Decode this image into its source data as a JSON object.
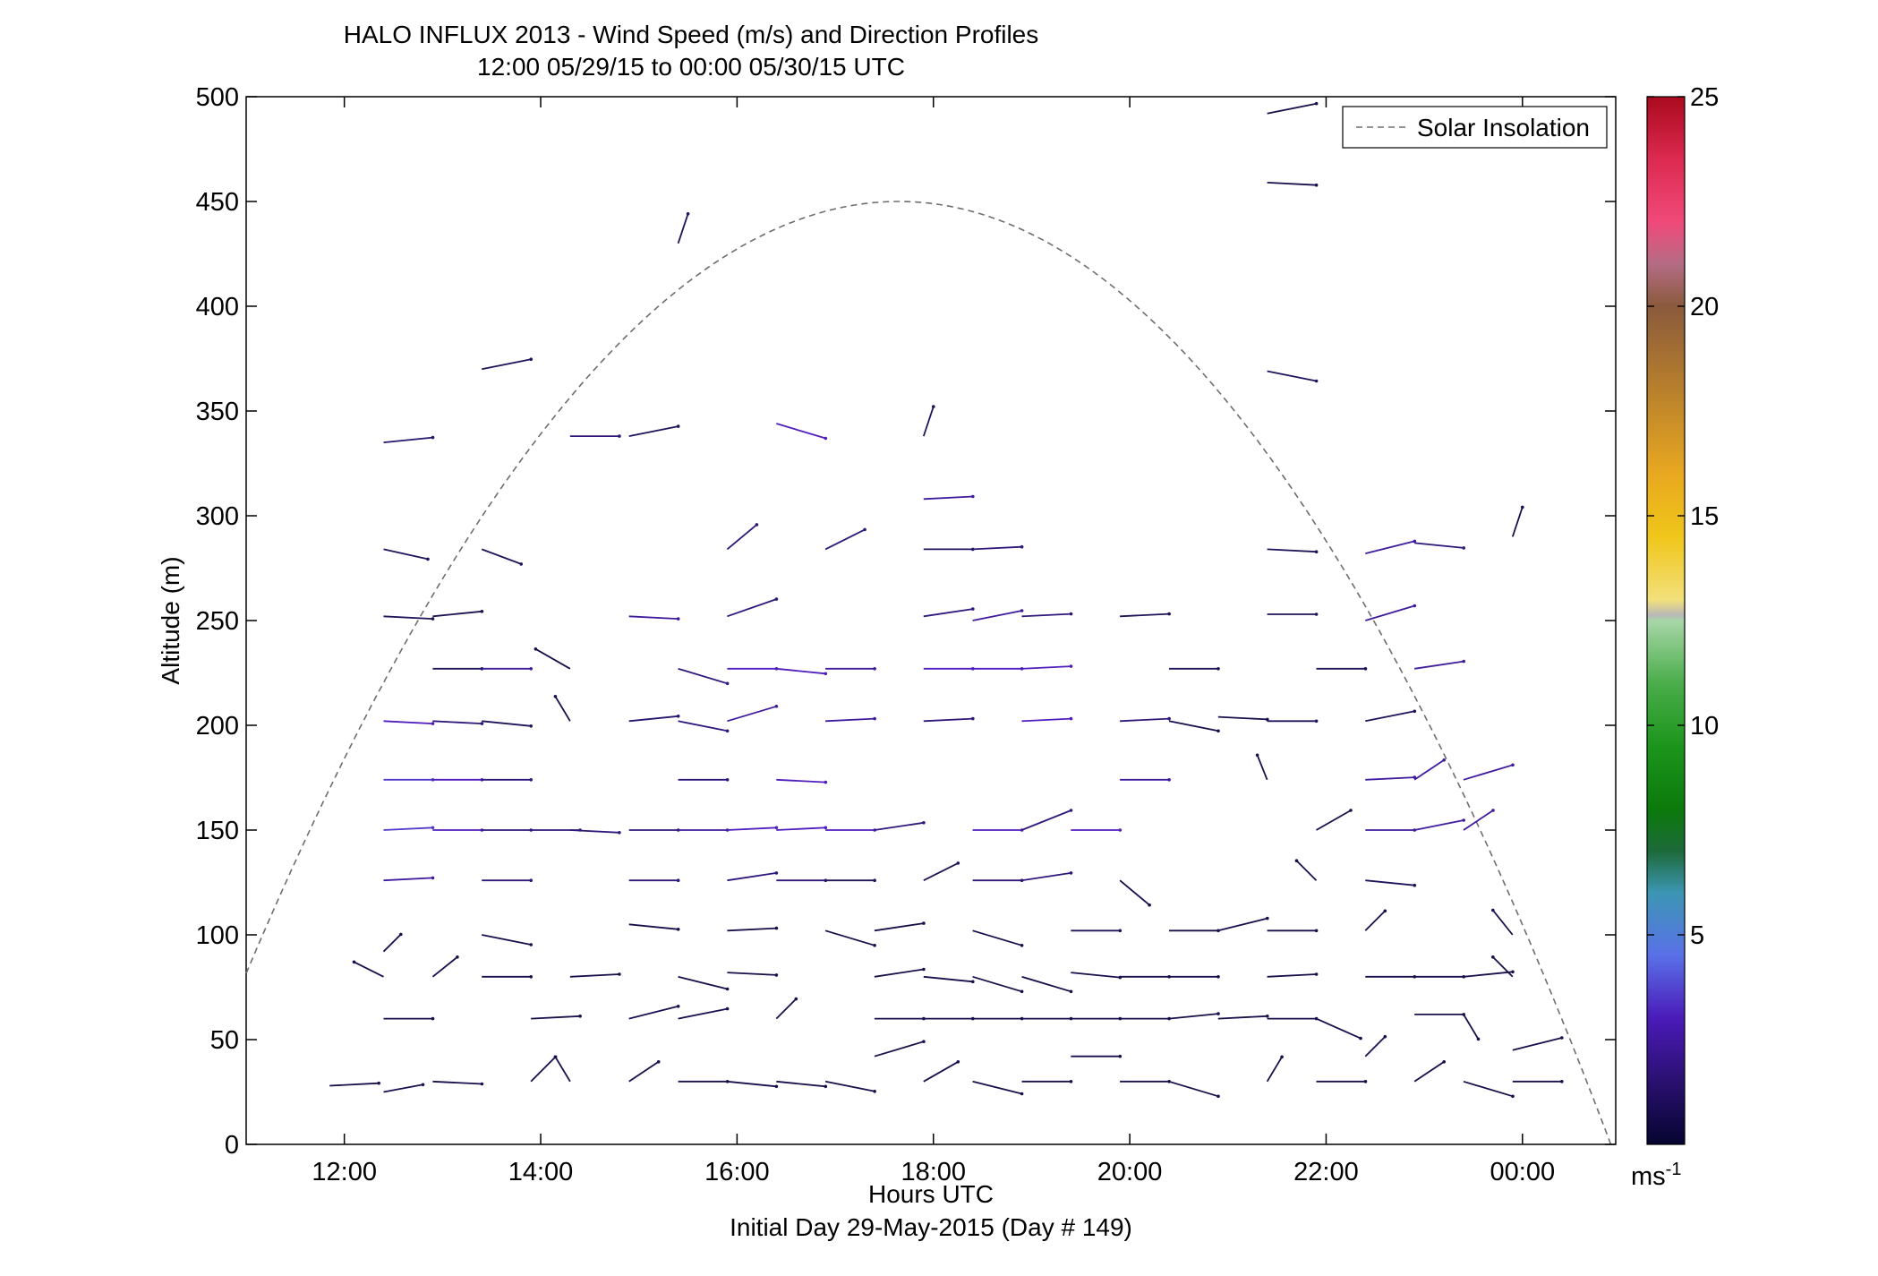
{
  "chart_data": {
    "type": "quiver",
    "title": "HALO INFLUX 2013 - Wind Speed (m/s) and Direction Profiles",
    "subtitle": "12:00 05/29/15 to 00:00 05/30/15  UTC",
    "xlabel": "Hours UTC",
    "xlabel2": "Initial Day 29-May-2015 (Day # 149)",
    "ylabel": "Altitude (m)",
    "xlim": [
      11.0,
      24.95
    ],
    "ylim": [
      0,
      500
    ],
    "x_ticks": [
      {
        "value": 12,
        "label": "12:00"
      },
      {
        "value": 14,
        "label": "14:00"
      },
      {
        "value": 16,
        "label": "16:00"
      },
      {
        "value": 18,
        "label": "18:00"
      },
      {
        "value": 20,
        "label": "20:00"
      },
      {
        "value": 22,
        "label": "22:00"
      },
      {
        "value": 24,
        "label": "00:00"
      }
    ],
    "y_ticks": [
      0,
      50,
      100,
      150,
      200,
      250,
      300,
      350,
      400,
      450,
      500
    ],
    "legend": {
      "entries": [
        "Solar Insolation"
      ],
      "placement": "top-right",
      "line_style": "dashed",
      "line_color": "#6e6e6e"
    },
    "colorbar": {
      "min": 0,
      "max": 25,
      "ticks": [
        5,
        10,
        15,
        20,
        25
      ],
      "unit_base": "ms",
      "unit_exp": "-1"
    },
    "grid": false,
    "insolation_curve": {
      "rise": 10.3,
      "set": 24.9,
      "peak_time": 17.65,
      "peak_altitude": 450
    },
    "wind_vectors": [
      {
        "t": 11.85,
        "z": 28,
        "u": 1.0,
        "v": 0.05,
        "s": 1.0
      },
      {
        "t": 12.4,
        "z": 25,
        "u": 0.8,
        "v": 0.15,
        "s": 1.2
      },
      {
        "t": 12.4,
        "z": 60,
        "u": 1.0,
        "v": 0.0,
        "s": 1.0
      },
      {
        "t": 12.4,
        "z": 80,
        "u": -0.6,
        "v": 0.3,
        "s": 1.0
      },
      {
        "t": 12.4,
        "z": 92,
        "u": 0.35,
        "v": 0.35,
        "s": 1.0
      },
      {
        "t": 12.4,
        "z": 126,
        "u": 1.0,
        "v": 0.05,
        "s": 2.5
      },
      {
        "t": 12.4,
        "z": 150,
        "u": 1.0,
        "v": 0.05,
        "s": 3.5
      },
      {
        "t": 12.4,
        "z": 174,
        "u": 1.0,
        "v": 0.0,
        "s": 3.5
      },
      {
        "t": 12.4,
        "z": 202,
        "u": 1.0,
        "v": -0.05,
        "s": 3.0
      },
      {
        "t": 12.4,
        "z": 252,
        "u": 1.0,
        "v": -0.05,
        "s": 1.5
      },
      {
        "t": 12.4,
        "z": 284,
        "u": 0.9,
        "v": -0.2,
        "s": 1.5
      },
      {
        "t": 12.4,
        "z": 335,
        "u": 1.0,
        "v": 0.1,
        "s": 1.8
      },
      {
        "t": 12.9,
        "z": 30,
        "u": 1.0,
        "v": -0.05,
        "s": 1.0
      },
      {
        "t": 12.9,
        "z": 80,
        "u": 0.5,
        "v": 0.4,
        "s": 1.0
      },
      {
        "t": 12.9,
        "z": 150,
        "u": 1.0,
        "v": 0.0,
        "s": 3.0
      },
      {
        "t": 12.9,
        "z": 174,
        "u": 1.0,
        "v": 0.0,
        "s": 3.0
      },
      {
        "t": 12.9,
        "z": 202,
        "u": 1.0,
        "v": -0.05,
        "s": 2.0
      },
      {
        "t": 12.9,
        "z": 227,
        "u": 1.0,
        "v": 0.0,
        "s": 1.5
      },
      {
        "t": 12.9,
        "z": 252,
        "u": 1.0,
        "v": 0.1,
        "s": 1.2
      },
      {
        "t": 13.4,
        "z": 80,
        "u": 1.0,
        "v": 0.0,
        "s": 1.0
      },
      {
        "t": 13.4,
        "z": 100,
        "u": 1.0,
        "v": -0.2,
        "s": 1.0
      },
      {
        "t": 13.4,
        "z": 126,
        "u": 1.0,
        "v": 0.0,
        "s": 2.0
      },
      {
        "t": 13.4,
        "z": 150,
        "u": 1.0,
        "v": 0.0,
        "s": 2.0
      },
      {
        "t": 13.4,
        "z": 174,
        "u": 1.0,
        "v": 0.0,
        "s": 2.0
      },
      {
        "t": 13.4,
        "z": 202,
        "u": 1.0,
        "v": -0.1,
        "s": 1.5
      },
      {
        "t": 13.4,
        "z": 227,
        "u": 1.0,
        "v": 0.0,
        "s": 2.5
      },
      {
        "t": 13.4,
        "z": 284,
        "u": 0.8,
        "v": -0.3,
        "s": 1.5
      },
      {
        "t": 13.4,
        "z": 370,
        "u": 1.0,
        "v": 0.2,
        "s": 1.5
      },
      {
        "t": 13.9,
        "z": 30,
        "u": 0.5,
        "v": 0.5,
        "s": 1.0
      },
      {
        "t": 13.9,
        "z": 60,
        "u": 1.0,
        "v": 0.05,
        "s": 1.0
      },
      {
        "t": 13.9,
        "z": 150,
        "u": 1.0,
        "v": 0.0,
        "s": 2.0
      },
      {
        "t": 14.3,
        "z": 30,
        "u": -0.3,
        "v": 0.5,
        "s": 1.0
      },
      {
        "t": 14.3,
        "z": 80,
        "u": 1.0,
        "v": 0.05,
        "s": 1.0
      },
      {
        "t": 14.3,
        "z": 150,
        "u": 1.0,
        "v": -0.05,
        "s": 2.0
      },
      {
        "t": 14.3,
        "z": 202,
        "u": -0.3,
        "v": 0.5,
        "s": 1.0
      },
      {
        "t": 14.3,
        "z": 227,
        "u": -0.7,
        "v": 0.4,
        "s": 1.0
      },
      {
        "t": 14.3,
        "z": 338,
        "u": 1.0,
        "v": 0.0,
        "s": 2.0
      },
      {
        "t": 14.9,
        "z": 30,
        "u": 0.6,
        "v": 0.4,
        "s": 1.0
      },
      {
        "t": 14.9,
        "z": 60,
        "u": 1.0,
        "v": 0.25,
        "s": 1.2
      },
      {
        "t": 14.9,
        "z": 105,
        "u": 1.0,
        "v": -0.1,
        "s": 1.0
      },
      {
        "t": 14.9,
        "z": 126,
        "u": 1.0,
        "v": 0.0,
        "s": 2.0
      },
      {
        "t": 14.9,
        "z": 150,
        "u": 1.0,
        "v": 0.0,
        "s": 2.0
      },
      {
        "t": 14.9,
        "z": 202,
        "u": 1.0,
        "v": 0.1,
        "s": 1.8
      },
      {
        "t": 14.9,
        "z": 252,
        "u": 1.0,
        "v": -0.05,
        "s": 2.5
      },
      {
        "t": 14.9,
        "z": 338,
        "u": 1.0,
        "v": 0.2,
        "s": 1.5
      },
      {
        "t": 15.4,
        "z": 30,
        "u": 1.0,
        "v": 0.0,
        "s": 1.0
      },
      {
        "t": 15.4,
        "z": 60,
        "u": 1.0,
        "v": 0.2,
        "s": 1.2
      },
      {
        "t": 15.4,
        "z": 80,
        "u": 1.0,
        "v": -0.25,
        "s": 1.0
      },
      {
        "t": 15.4,
        "z": 150,
        "u": 1.0,
        "v": 0.0,
        "s": 2.5
      },
      {
        "t": 15.4,
        "z": 174,
        "u": 1.0,
        "v": 0.0,
        "s": 2.0
      },
      {
        "t": 15.4,
        "z": 202,
        "u": 1.0,
        "v": -0.2,
        "s": 2.0
      },
      {
        "t": 15.4,
        "z": 227,
        "u": 1.0,
        "v": -0.3,
        "s": 2.0
      },
      {
        "t": 15.4,
        "z": 430,
        "u": 0.2,
        "v": 0.6,
        "s": 1.5
      },
      {
        "t": 15.9,
        "z": 30,
        "u": 1.0,
        "v": -0.1,
        "s": 1.0
      },
      {
        "t": 15.9,
        "z": 82,
        "u": 1.0,
        "v": -0.05,
        "s": 1.0
      },
      {
        "t": 15.9,
        "z": 102,
        "u": 1.0,
        "v": 0.05,
        "s": 1.0
      },
      {
        "t": 15.9,
        "z": 126,
        "u": 1.0,
        "v": 0.15,
        "s": 2.0
      },
      {
        "t": 15.9,
        "z": 150,
        "u": 1.0,
        "v": 0.05,
        "s": 3.0
      },
      {
        "t": 15.9,
        "z": 202,
        "u": 1.0,
        "v": 0.3,
        "s": 2.5
      },
      {
        "t": 15.9,
        "z": 227,
        "u": 1.0,
        "v": 0.0,
        "s": 3.0
      },
      {
        "t": 15.9,
        "z": 252,
        "u": 1.0,
        "v": 0.35,
        "s": 2.0
      },
      {
        "t": 15.9,
        "z": 284,
        "u": 0.6,
        "v": 0.5,
        "s": 2.0
      },
      {
        "t": 16.4,
        "z": 30,
        "u": 1.0,
        "v": -0.1,
        "s": 1.0
      },
      {
        "t": 16.4,
        "z": 60,
        "u": 0.4,
        "v": 0.4,
        "s": 1.0
      },
      {
        "t": 16.4,
        "z": 126,
        "u": 1.0,
        "v": 0.0,
        "s": 2.0
      },
      {
        "t": 16.4,
        "z": 150,
        "u": 1.0,
        "v": 0.05,
        "s": 3.0
      },
      {
        "t": 16.4,
        "z": 174,
        "u": 1.0,
        "v": -0.05,
        "s": 3.0
      },
      {
        "t": 16.4,
        "z": 227,
        "u": 1.0,
        "v": -0.1,
        "s": 3.0
      },
      {
        "t": 16.4,
        "z": 344,
        "u": 1.0,
        "v": -0.3,
        "s": 3.0
      },
      {
        "t": 16.9,
        "z": 30,
        "u": 1.0,
        "v": -0.2,
        "s": 1.0
      },
      {
        "t": 16.9,
        "z": 102,
        "u": 1.0,
        "v": -0.3,
        "s": 1.0
      },
      {
        "t": 16.9,
        "z": 126,
        "u": 1.0,
        "v": 0.0,
        "s": 1.5
      },
      {
        "t": 16.9,
        "z": 150,
        "u": 1.0,
        "v": 0.0,
        "s": 3.0
      },
      {
        "t": 16.9,
        "z": 202,
        "u": 1.0,
        "v": 0.05,
        "s": 2.5
      },
      {
        "t": 16.9,
        "z": 227,
        "u": 1.0,
        "v": 0.0,
        "s": 2.5
      },
      {
        "t": 16.9,
        "z": 284,
        "u": 0.8,
        "v": 0.4,
        "s": 2.0
      },
      {
        "t": 17.4,
        "z": 42,
        "u": 1.0,
        "v": 0.3,
        "s": 1.0
      },
      {
        "t": 17.4,
        "z": 60,
        "u": 1.0,
        "v": 0.0,
        "s": 1.0
      },
      {
        "t": 17.4,
        "z": 80,
        "u": 1.0,
        "v": 0.15,
        "s": 1.0
      },
      {
        "t": 17.4,
        "z": 102,
        "u": 1.0,
        "v": 0.15,
        "s": 1.0
      },
      {
        "t": 17.4,
        "z": 150,
        "u": 1.0,
        "v": 0.15,
        "s": 2.0
      },
      {
        "t": 17.9,
        "z": 30,
        "u": 0.7,
        "v": 0.4,
        "s": 1.0
      },
      {
        "t": 17.9,
        "z": 60,
        "u": 1.0,
        "v": 0.0,
        "s": 1.0
      },
      {
        "t": 17.9,
        "z": 80,
        "u": 1.0,
        "v": -0.1,
        "s": 1.0
      },
      {
        "t": 17.9,
        "z": 126,
        "u": 0.7,
        "v": 0.35,
        "s": 1.5
      },
      {
        "t": 17.9,
        "z": 202,
        "u": 1.0,
        "v": 0.05,
        "s": 2.0
      },
      {
        "t": 17.9,
        "z": 227,
        "u": 1.0,
        "v": 0.0,
        "s": 3.0
      },
      {
        "t": 17.9,
        "z": 252,
        "u": 1.0,
        "v": 0.15,
        "s": 2.0
      },
      {
        "t": 17.9,
        "z": 284,
        "u": 1.0,
        "v": 0.0,
        "s": 1.5
      },
      {
        "t": 17.9,
        "z": 308,
        "u": 1.0,
        "v": 0.05,
        "s": 2.5
      },
      {
        "t": 17.9,
        "z": 338,
        "u": 0.2,
        "v": 0.6,
        "s": 1.5
      },
      {
        "t": 18.4,
        "z": 30,
        "u": 1.0,
        "v": -0.25,
        "s": 1.0
      },
      {
        "t": 18.4,
        "z": 60,
        "u": 1.0,
        "v": 0.0,
        "s": 1.0
      },
      {
        "t": 18.4,
        "z": 80,
        "u": 1.0,
        "v": -0.3,
        "s": 1.0
      },
      {
        "t": 18.4,
        "z": 102,
        "u": 1.0,
        "v": -0.3,
        "s": 1.0
      },
      {
        "t": 18.4,
        "z": 126,
        "u": 1.0,
        "v": 0.0,
        "s": 2.0
      },
      {
        "t": 18.4,
        "z": 150,
        "u": 1.0,
        "v": 0.0,
        "s": 3.0
      },
      {
        "t": 18.4,
        "z": 227,
        "u": 1.0,
        "v": 0.0,
        "s": 3.0
      },
      {
        "t": 18.4,
        "z": 250,
        "u": 1.0,
        "v": 0.2,
        "s": 2.5
      },
      {
        "t": 18.4,
        "z": 284,
        "u": 1.0,
        "v": 0.05,
        "s": 2.0
      },
      {
        "t": 18.9,
        "z": 30,
        "u": 1.0,
        "v": 0.0,
        "s": 1.0
      },
      {
        "t": 18.9,
        "z": 60,
        "u": 1.0,
        "v": 0.0,
        "s": 1.0
      },
      {
        "t": 18.9,
        "z": 80,
        "u": 1.0,
        "v": -0.3,
        "s": 1.0
      },
      {
        "t": 18.9,
        "z": 126,
        "u": 1.0,
        "v": 0.15,
        "s": 2.0
      },
      {
        "t": 18.9,
        "z": 150,
        "u": 1.0,
        "v": 0.4,
        "s": 2.0
      },
      {
        "t": 18.9,
        "z": 202,
        "u": 1.0,
        "v": 0.05,
        "s": 3.0
      },
      {
        "t": 18.9,
        "z": 227,
        "u": 1.0,
        "v": 0.05,
        "s": 3.0
      },
      {
        "t": 18.9,
        "z": 252,
        "u": 1.0,
        "v": 0.05,
        "s": 2.0
      },
      {
        "t": 19.4,
        "z": 42,
        "u": 1.0,
        "v": 0.0,
        "s": 1.0
      },
      {
        "t": 19.4,
        "z": 60,
        "u": 1.0,
        "v": 0.0,
        "s": 1.0
      },
      {
        "t": 19.4,
        "z": 82,
        "u": 1.0,
        "v": -0.1,
        "s": 1.0
      },
      {
        "t": 19.4,
        "z": 102,
        "u": 1.0,
        "v": 0.0,
        "s": 1.5
      },
      {
        "t": 19.4,
        "z": 150,
        "u": 1.0,
        "v": 0.0,
        "s": 3.0
      },
      {
        "t": 19.9,
        "z": 30,
        "u": 1.0,
        "v": 0.0,
        "s": 1.0
      },
      {
        "t": 19.9,
        "z": 60,
        "u": 1.0,
        "v": 0.0,
        "s": 1.0
      },
      {
        "t": 19.9,
        "z": 80,
        "u": 1.0,
        "v": 0.0,
        "s": 1.0
      },
      {
        "t": 19.9,
        "z": 126,
        "u": 0.6,
        "v": -0.5,
        "s": 1.0
      },
      {
        "t": 19.9,
        "z": 174,
        "u": 1.0,
        "v": 0.0,
        "s": 2.5
      },
      {
        "t": 19.9,
        "z": 202,
        "u": 1.0,
        "v": 0.05,
        "s": 2.0
      },
      {
        "t": 19.9,
        "z": 252,
        "u": 1.0,
        "v": 0.05,
        "s": 1.5
      },
      {
        "t": 20.4,
        "z": 30,
        "u": 1.0,
        "v": -0.3,
        "s": 1.0
      },
      {
        "t": 20.4,
        "z": 60,
        "u": 1.0,
        "v": 0.1,
        "s": 1.0
      },
      {
        "t": 20.4,
        "z": 80,
        "u": 1.0,
        "v": 0.0,
        "s": 1.0
      },
      {
        "t": 20.4,
        "z": 102,
        "u": 1.0,
        "v": 0.0,
        "s": 1.0
      },
      {
        "t": 20.4,
        "z": 202,
        "u": 1.0,
        "v": -0.2,
        "s": 1.0
      },
      {
        "t": 20.4,
        "z": 227,
        "u": 1.0,
        "v": 0.0,
        "s": 1.5
      },
      {
        "t": 20.9,
        "z": 60,
        "u": 1.0,
        "v": 0.05,
        "s": 1.0
      },
      {
        "t": 20.9,
        "z": 102,
        "u": 1.0,
        "v": 0.25,
        "s": 1.0
      },
      {
        "t": 20.9,
        "z": 204,
        "u": 1.0,
        "v": -0.05,
        "s": 1.0
      },
      {
        "t": 21.4,
        "z": 30,
        "u": 0.3,
        "v": 0.5,
        "s": 1.0
      },
      {
        "t": 21.4,
        "z": 60,
        "u": 1.0,
        "v": 0.0,
        "s": 1.0
      },
      {
        "t": 21.4,
        "z": 80,
        "u": 1.0,
        "v": 0.05,
        "s": 1.0
      },
      {
        "t": 21.4,
        "z": 102,
        "u": 1.0,
        "v": 0.0,
        "s": 1.0
      },
      {
        "t": 21.4,
        "z": 174,
        "u": -0.2,
        "v": 0.5,
        "s": 1.0
      },
      {
        "t": 21.4,
        "z": 202,
        "u": 1.0,
        "v": 0.0,
        "s": 1.5
      },
      {
        "t": 21.4,
        "z": 253,
        "u": 1.0,
        "v": 0.0,
        "s": 1.5
      },
      {
        "t": 21.4,
        "z": 284,
        "u": 1.0,
        "v": -0.05,
        "s": 1.5
      },
      {
        "t": 21.4,
        "z": 369,
        "u": 1.0,
        "v": -0.2,
        "s": 1.5
      },
      {
        "t": 21.4,
        "z": 459,
        "u": 1.0,
        "v": -0.05,
        "s": 1.0
      },
      {
        "t": 21.4,
        "z": 492,
        "u": 1.0,
        "v": 0.2,
        "s": 1.0
      },
      {
        "t": 21.9,
        "z": 30,
        "u": 1.0,
        "v": 0.0,
        "s": 1.0
      },
      {
        "t": 21.9,
        "z": 60,
        "u": 0.9,
        "v": -0.4,
        "s": 1.0
      },
      {
        "t": 21.9,
        "z": 126,
        "u": -0.4,
        "v": 0.4,
        "s": 1.0
      },
      {
        "t": 21.9,
        "z": 150,
        "u": 0.7,
        "v": 0.4,
        "s": 1.0
      },
      {
        "t": 21.9,
        "z": 227,
        "u": 1.0,
        "v": 0.0,
        "s": 1.5
      },
      {
        "t": 22.4,
        "z": 42,
        "u": 0.4,
        "v": 0.4,
        "s": 1.0
      },
      {
        "t": 22.4,
        "z": 80,
        "u": 1.0,
        "v": 0.0,
        "s": 1.0
      },
      {
        "t": 22.4,
        "z": 102,
        "u": 0.4,
        "v": 0.4,
        "s": 1.0
      },
      {
        "t": 22.4,
        "z": 126,
        "u": 1.0,
        "v": -0.1,
        "s": 1.5
      },
      {
        "t": 22.4,
        "z": 150,
        "u": 1.0,
        "v": 0.0,
        "s": 2.5
      },
      {
        "t": 22.4,
        "z": 174,
        "u": 1.0,
        "v": 0.05,
        "s": 2.5
      },
      {
        "t": 22.4,
        "z": 202,
        "u": 1.0,
        "v": 0.2,
        "s": 1.5
      },
      {
        "t": 22.4,
        "z": 250,
        "u": 1.0,
        "v": 0.3,
        "s": 2.5
      },
      {
        "t": 22.4,
        "z": 282,
        "u": 1.0,
        "v": 0.25,
        "s": 2.5
      },
      {
        "t": 22.9,
        "z": 30,
        "u": 0.6,
        "v": 0.4,
        "s": 1.0
      },
      {
        "t": 22.9,
        "z": 62,
        "u": 1.0,
        "v": 0.0,
        "s": 1.0
      },
      {
        "t": 22.9,
        "z": 80,
        "u": 1.0,
        "v": 0.0,
        "s": 1.0
      },
      {
        "t": 22.9,
        "z": 150,
        "u": 1.0,
        "v": 0.2,
        "s": 2.5
      },
      {
        "t": 22.9,
        "z": 174,
        "u": 0.6,
        "v": 0.4,
        "s": 2.5
      },
      {
        "t": 22.9,
        "z": 227,
        "u": 1.0,
        "v": 0.15,
        "s": 2.5
      },
      {
        "t": 22.9,
        "z": 287,
        "u": 1.0,
        "v": -0.1,
        "s": 2.0
      },
      {
        "t": 23.4,
        "z": 30,
        "u": 1.0,
        "v": -0.3,
        "s": 1.0
      },
      {
        "t": 23.4,
        "z": 62,
        "u": 0.3,
        "v": -0.5,
        "s": 1.0
      },
      {
        "t": 23.4,
        "z": 80,
        "u": 1.0,
        "v": 0.1,
        "s": 1.0
      },
      {
        "t": 23.4,
        "z": 150,
        "u": 0.6,
        "v": 0.4,
        "s": 2.5
      },
      {
        "t": 23.4,
        "z": 174,
        "u": 1.0,
        "v": 0.3,
        "s": 2.5
      },
      {
        "t": 23.9,
        "z": 30,
        "u": 1.0,
        "v": 0.0,
        "s": 1.0
      },
      {
        "t": 23.9,
        "z": 45,
        "u": 1.0,
        "v": 0.25,
        "s": 1.0
      },
      {
        "t": 23.9,
        "z": 80,
        "u": -0.4,
        "v": 0.4,
        "s": 1.0
      },
      {
        "t": 23.9,
        "z": 100,
        "u": -0.4,
        "v": 0.5,
        "s": 1.0
      },
      {
        "t": 23.9,
        "z": 290,
        "u": 0.2,
        "v": 0.6,
        "s": 1.0
      }
    ]
  }
}
